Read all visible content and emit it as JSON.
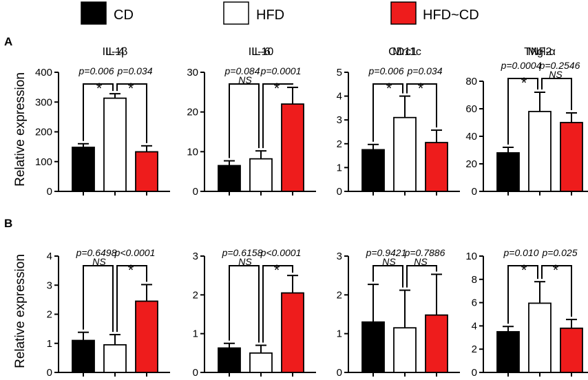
{
  "legend": [
    {
      "label": "CD",
      "color": "#000000"
    },
    {
      "label": "HFD",
      "color": "#ffffff"
    },
    {
      "label": "HFD~CD",
      "color": "#ee1c1c"
    }
  ],
  "panels": [
    {
      "label": "A",
      "ylabel": "Relative expression"
    },
    {
      "label": "B",
      "ylabel": "Relative expression"
    }
  ],
  "chart_data": [
    {
      "type": "bar",
      "title": "IL-1β",
      "categories": [
        "CD",
        "HFD",
        "HFD~CD"
      ],
      "values": [
        148,
        313,
        133
      ],
      "errors": [
        12,
        15,
        20
      ],
      "ylim": [
        0,
        400
      ],
      "yticks": [
        "0",
        "100",
        "200",
        "300",
        "400"
      ],
      "xlabel": "",
      "ylabel": "Relative expression",
      "comparisons": [
        {
          "from": 0,
          "to": 1,
          "p": "p=0.006",
          "sig": "*"
        },
        {
          "from": 1,
          "to": 2,
          "p": "p=0.034",
          "sig": "*"
        }
      ]
    },
    {
      "type": "bar",
      "title": "IL-6",
      "categories": [
        "CD",
        "HFD",
        "HFD~CD"
      ],
      "values": [
        6.5,
        8.2,
        22
      ],
      "errors": [
        1.2,
        2,
        4.2
      ],
      "ylim": [
        0,
        30
      ],
      "yticks": [
        "0",
        "10",
        "20",
        "30"
      ],
      "xlabel": "",
      "ylabel": "",
      "comparisons": [
        {
          "from": 0,
          "to": 1,
          "p": "p=0.084",
          "sig": "NS"
        },
        {
          "from": 1,
          "to": 2,
          "p": "p=0.0001",
          "sig": "*"
        }
      ]
    },
    {
      "type": "bar",
      "title": "CD11c",
      "categories": [
        "CD",
        "HFD",
        "HFD~CD"
      ],
      "values": [
        1.75,
        3.1,
        2.05
      ],
      "errors": [
        0.22,
        0.9,
        0.52
      ],
      "ylim": [
        0,
        5
      ],
      "yticks": [
        "0",
        "1",
        "2",
        "3",
        "4",
        "5"
      ],
      "xlabel": "",
      "ylabel": "",
      "comparisons": [
        {
          "from": 0,
          "to": 1,
          "p": "p=0.006",
          "sig": "*"
        },
        {
          "from": 1,
          "to": 2,
          "p": "p=0.034",
          "sig": "*"
        }
      ]
    },
    {
      "type": "bar",
      "title": "TNF-α",
      "categories": [
        "CD",
        "HFD",
        "HFD~CD"
      ],
      "values": [
        28,
        58,
        50
      ],
      "errors": [
        4,
        14,
        7
      ],
      "ylim": [
        0,
        80
      ],
      "yticks": [
        "0",
        "20",
        "40",
        "60",
        "80"
      ],
      "xlabel": "",
      "ylabel": "",
      "comparisons": [
        {
          "from": 0,
          "to": 1,
          "p": "p=0.0004",
          "sig": "*"
        },
        {
          "from": 1,
          "to": 2,
          "p": "p=0.2546",
          "sig": "NS"
        }
      ]
    },
    {
      "type": "bar",
      "title": "IL-4",
      "categories": [
        "CD",
        "HFD",
        "HFD~CD"
      ],
      "values": [
        1.1,
        0.95,
        2.45
      ],
      "errors": [
        0.28,
        0.35,
        0.57
      ],
      "ylim": [
        0,
        4
      ],
      "yticks": [
        "0",
        "1",
        "2",
        "3",
        "4"
      ],
      "xlabel": "",
      "ylabel": "Relative expression",
      "comparisons": [
        {
          "from": 0,
          "to": 1,
          "p": "p=0.6498",
          "sig": "NS"
        },
        {
          "from": 1,
          "to": 2,
          "p": "p<0.0001",
          "sig": "*"
        }
      ]
    },
    {
      "type": "bar",
      "title": "IL-10",
      "categories": [
        "CD",
        "HFD",
        "HFD~CD"
      ],
      "values": [
        0.63,
        0.5,
        2.05
      ],
      "errors": [
        0.12,
        0.2,
        0.45
      ],
      "ylim": [
        0,
        3
      ],
      "yticks": [
        "0",
        "1",
        "2",
        "3"
      ],
      "xlabel": "",
      "ylabel": "",
      "comparisons": [
        {
          "from": 0,
          "to": 1,
          "p": "p=0.6158",
          "sig": "NS"
        },
        {
          "from": 1,
          "to": 2,
          "p": "p<0.0001",
          "sig": "*"
        }
      ]
    },
    {
      "type": "bar",
      "title": "Mrc1",
      "categories": [
        "CD",
        "HFD",
        "HFD~CD"
      ],
      "values": [
        1.3,
        1.15,
        1.48
      ],
      "errors": [
        0.97,
        0.97,
        1.05
      ],
      "ylim": [
        0,
        3
      ],
      "yticks": [
        "0",
        "1",
        "2",
        "3"
      ],
      "xlabel": "",
      "ylabel": "",
      "comparisons": [
        {
          "from": 0,
          "to": 1,
          "p": "p=0.9421",
          "sig": "NS"
        },
        {
          "from": 1,
          "to": 2,
          "p": "p=0.7886",
          "sig": "NS"
        }
      ]
    },
    {
      "type": "bar",
      "title": "Mgl2",
      "categories": [
        "CD",
        "HFD",
        "HFD~CD"
      ],
      "values": [
        3.5,
        5.95,
        3.8
      ],
      "errors": [
        0.45,
        1.85,
        0.75
      ],
      "ylim": [
        0,
        10
      ],
      "yticks": [
        "0",
        "2",
        "4",
        "6",
        "8",
        "10"
      ],
      "xlabel": "",
      "ylabel": "",
      "comparisons": [
        {
          "from": 0,
          "to": 1,
          "p": "p=0.010",
          "sig": "*"
        },
        {
          "from": 1,
          "to": 2,
          "p": "p=0.025",
          "sig": "*"
        }
      ]
    }
  ]
}
